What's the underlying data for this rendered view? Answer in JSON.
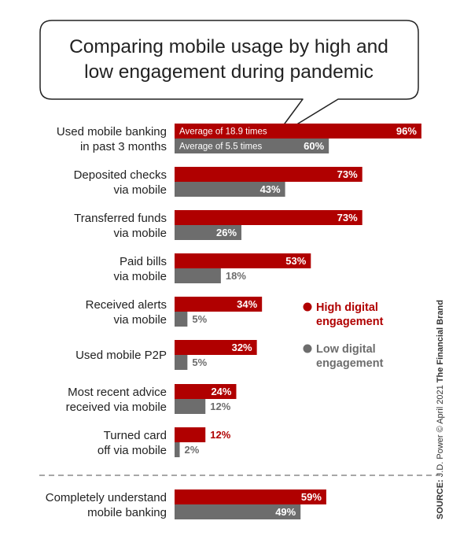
{
  "colors": {
    "high": "#B00000",
    "low": "#6D6D6D",
    "text": "#222222"
  },
  "source": {
    "label": "SOURCE:",
    "text": "J.D. Power © April 2021",
    "brand": "The Financial Brand"
  },
  "chart_data": {
    "type": "bar",
    "orientation": "horizontal",
    "title": [
      "Comparing mobile usage by high and",
      "low engagement during pandemic"
    ],
    "categories": [
      [
        "Used mobile banking",
        "in past 3 months"
      ],
      [
        "Deposited checks",
        "via mobile"
      ],
      [
        "Transferred funds",
        "via mobile"
      ],
      [
        "Paid bills",
        "via mobile"
      ],
      [
        "Received alerts",
        "via mobile"
      ],
      [
        "Used mobile P2P"
      ],
      [
        "Most recent advice",
        "received via mobile"
      ],
      [
        "Turned card",
        "off via mobile"
      ],
      [
        "Completely understand",
        "mobile banking"
      ]
    ],
    "series": [
      {
        "name": "High digital engagement",
        "legend": [
          "High digital",
          "engagement"
        ],
        "values": [
          96,
          73,
          73,
          53,
          34,
          32,
          24,
          12,
          59
        ],
        "labels": [
          "96%",
          "73%",
          "73%",
          "53%",
          "34%",
          "32%",
          "24%",
          "12%",
          "59%"
        ]
      },
      {
        "name": "Low digital engagement",
        "legend": [
          "Low digital",
          "engagement"
        ],
        "values": [
          60,
          43,
          26,
          18,
          5,
          5,
          12,
          2,
          49
        ],
        "labels": [
          "60%",
          "43%",
          "26%",
          "18%",
          "5%",
          "5%",
          "12%",
          "2%",
          "49%"
        ]
      }
    ],
    "annotations": [
      "Average of 18.9 times",
      "Average of 5.5 times"
    ],
    "xlim": [
      0,
      100
    ],
    "separator_before_last_category": true,
    "legend_position": "right"
  }
}
